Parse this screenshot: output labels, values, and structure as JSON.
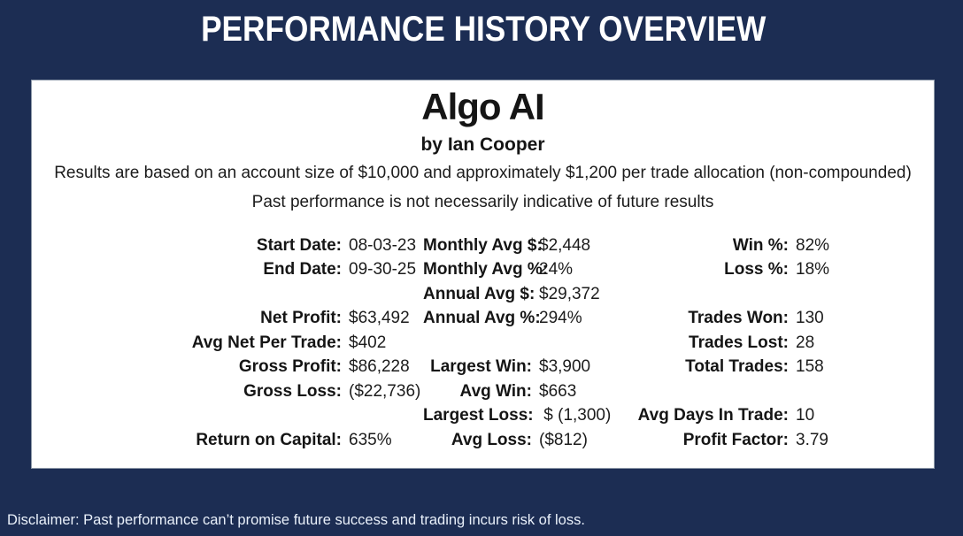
{
  "page_title": "PERFORMANCE HISTORY OVERVIEW",
  "card": {
    "title": "Algo AI",
    "subtitle": "by Ian Cooper",
    "description_line1": "Results are based on an account size of $10,000 and approximately $1,200 per trade allocation (non-compounded)",
    "description_line2": "Past performance is not necessarily indicative of future results",
    "stats_rows": [
      [
        {
          "label": "Start Date:",
          "value": "08-03-23"
        },
        {
          "label": "Monthly Avg $:",
          "value": "$2,448"
        },
        {
          "label": "Win %:",
          "value": "82%"
        }
      ],
      [
        {
          "label": "End Date:",
          "value": "09-30-25"
        },
        {
          "label": "Monthly Avg %:",
          "value": "24%"
        },
        {
          "label": "Loss %:",
          "value": "18%"
        }
      ],
      [
        {
          "label": "",
          "value": ""
        },
        {
          "label": "Annual Avg $:",
          "value": "$29,372"
        },
        {
          "label": "",
          "value": ""
        }
      ],
      [
        {
          "label": "Net Profit:",
          "value": "$63,492"
        },
        {
          "label": "Annual Avg %:",
          "value": "294%"
        },
        {
          "label": "Trades Won:",
          "value": "130"
        }
      ],
      [
        {
          "label": "Avg Net Per Trade:",
          "value": "$402"
        },
        {
          "label": "",
          "value": ""
        },
        {
          "label": "Trades Lost:",
          "value": "28"
        }
      ],
      [
        {
          "label": "Gross Profit:",
          "value": "$86,228"
        },
        {
          "label": "Largest Win:",
          "value": "$3,900"
        },
        {
          "label": "Total Trades:",
          "value": "158"
        }
      ],
      [
        {
          "label": "Gross Loss:",
          "value": "($22,736)"
        },
        {
          "label": "Avg Win:",
          "value": "$663"
        },
        {
          "label": "",
          "value": ""
        }
      ],
      [
        {
          "label": "",
          "value": ""
        },
        {
          "label": "Largest Loss:",
          "value": " $ (1,300)"
        },
        {
          "label": "Avg Days In Trade:",
          "value": "10"
        }
      ],
      [
        {
          "label": "Return on Capital:",
          "value": "635%"
        },
        {
          "label": "Avg Loss:",
          "value": "($812)"
        },
        {
          "label": "Profit Factor:",
          "value": "3.79"
        }
      ]
    ]
  },
  "disclaimer": "Disclaimer: Past performance can’t promise future success and trading incurs risk of loss.",
  "colors": {
    "background_navy": "#1c2d53",
    "card_background": "#ffffff",
    "title_text": "#ffffff",
    "body_text": "#1c1c1c",
    "disclaimer_text": "#e9f0fa"
  }
}
